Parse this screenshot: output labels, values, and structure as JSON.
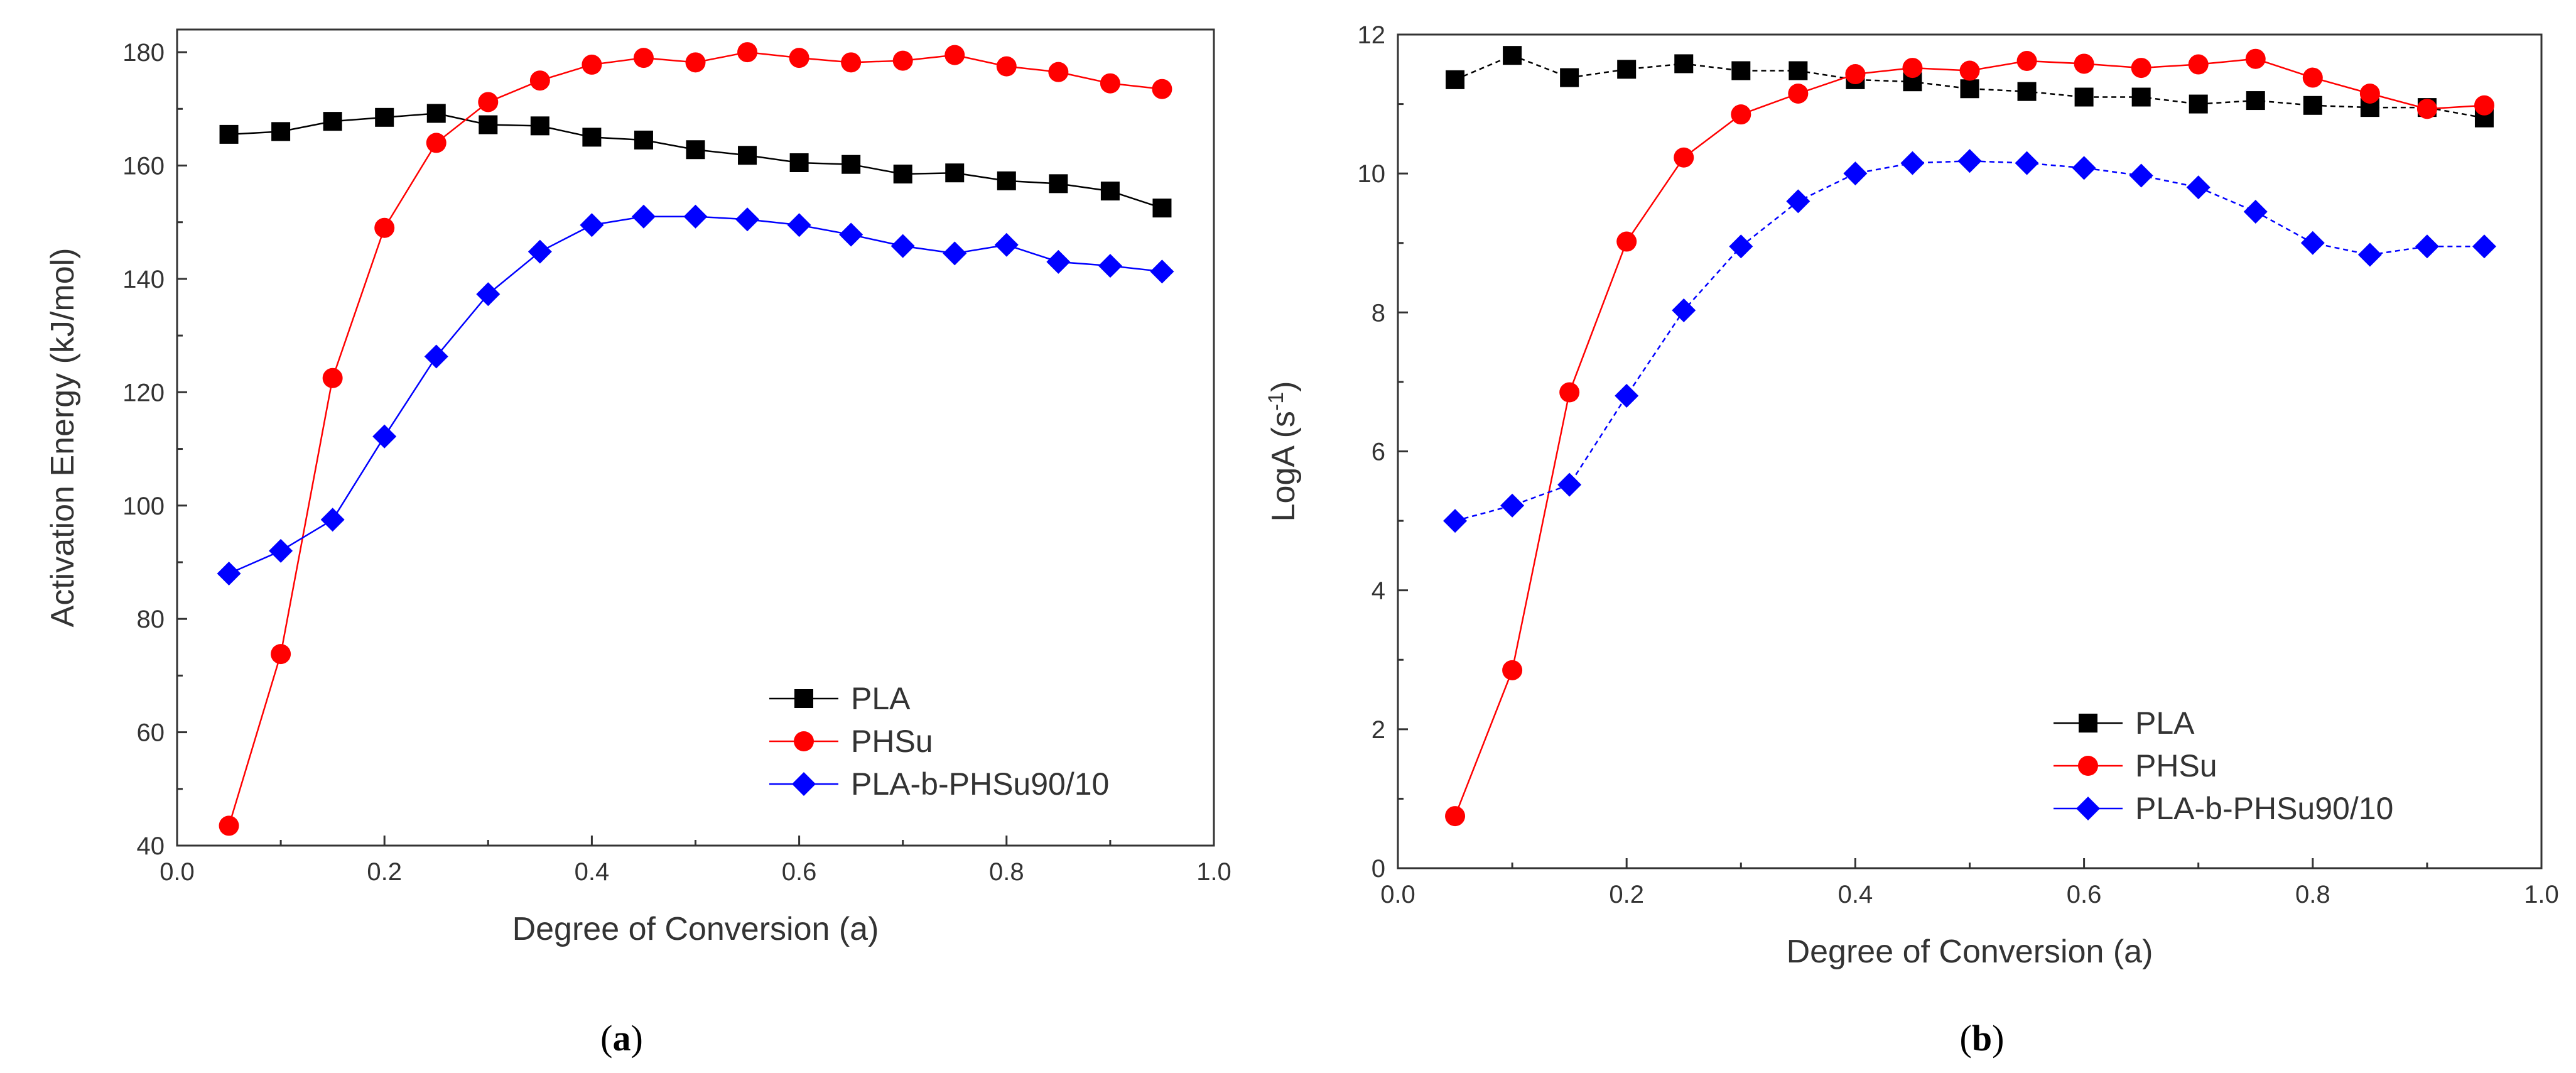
{
  "chart_data": [
    {
      "type": "line",
      "panel": "a",
      "caption": {
        "open": "(",
        "letter": "a",
        "close": ")"
      },
      "xlabel": "Degree of Conversion (a)",
      "ylabel": "Activation Energy (kJ/mol)",
      "xlim": [
        0.0,
        1.0
      ],
      "ylim": [
        40,
        184
      ],
      "x_ticks": [
        0.0,
        0.2,
        0.4,
        0.6,
        0.8,
        1.0
      ],
      "x_tick_labels": [
        "0.0",
        "0.2",
        "0.4",
        "0.6",
        "0.8",
        "1.0"
      ],
      "y_ticks": [
        40,
        60,
        80,
        100,
        120,
        140,
        160,
        180
      ],
      "y_tick_labels": [
        "40",
        "60",
        "80",
        "100",
        "120",
        "140",
        "160",
        "180"
      ],
      "x": [
        0.05,
        0.1,
        0.15,
        0.2,
        0.25,
        0.3,
        0.35,
        0.4,
        0.45,
        0.5,
        0.55,
        0.6,
        0.65,
        0.7,
        0.75,
        0.8,
        0.85,
        0.9,
        0.95
      ],
      "grid": false,
      "legend_position": "bottom-right",
      "series": [
        {
          "name": "PLA",
          "color": "#000000",
          "marker": "square",
          "line": true,
          "values": [
            165.5,
            166.0,
            167.8,
            168.5,
            169.2,
            167.2,
            167.0,
            165.0,
            164.5,
            162.8,
            161.8,
            160.5,
            160.2,
            158.5,
            158.7,
            157.3,
            156.8,
            155.5,
            152.5
          ]
        },
        {
          "name": "PHSu",
          "color": "#ff0000",
          "marker": "circle",
          "line": true,
          "values": [
            43.5,
            73.8,
            122.5,
            149.0,
            164.0,
            171.2,
            175.0,
            177.8,
            179.0,
            178.2,
            180.0,
            179.0,
            178.2,
            178.5,
            179.5,
            177.5,
            176.5,
            174.5,
            173.5
          ]
        },
        {
          "name": "PLA-b-PHSu90/10",
          "color": "#0000ff",
          "marker": "diamond",
          "line": true,
          "values": [
            88.0,
            92.0,
            97.5,
            112.2,
            126.3,
            137.3,
            144.8,
            149.5,
            151.0,
            151.0,
            150.5,
            149.5,
            147.8,
            145.8,
            144.5,
            146.0,
            143.0,
            142.3,
            141.3
          ]
        }
      ]
    },
    {
      "type": "line",
      "panel": "b",
      "caption": {
        "open": "(",
        "letter": "b",
        "close": ")"
      },
      "xlabel": "Degree of Conversion (a)",
      "ylabel": "LogA (s",
      "ylabel_superscript": "-1",
      "ylabel_suffix": ")",
      "xlim": [
        0.0,
        1.0
      ],
      "ylim": [
        0,
        12
      ],
      "x_ticks": [
        0.0,
        0.2,
        0.4,
        0.6,
        0.8,
        1.0
      ],
      "x_tick_labels": [
        "0.0",
        "0.2",
        "0.4",
        "0.6",
        "0.8",
        "1.0"
      ],
      "y_ticks": [
        0,
        2,
        4,
        6,
        8,
        10,
        12
      ],
      "y_tick_labels": [
        "0",
        "2",
        "4",
        "6",
        "8",
        "10",
        "12"
      ],
      "x": [
        0.05,
        0.1,
        0.15,
        0.2,
        0.25,
        0.3,
        0.35,
        0.4,
        0.45,
        0.5,
        0.55,
        0.6,
        0.65,
        0.7,
        0.75,
        0.8,
        0.85,
        0.9,
        0.95
      ],
      "grid": false,
      "legend_position": "bottom-right",
      "series": [
        {
          "name": "PLA",
          "color": "#000000",
          "marker": "square",
          "line": "dashed",
          "values": [
            11.35,
            11.7,
            11.38,
            11.5,
            11.58,
            11.48,
            11.48,
            11.35,
            11.32,
            11.22,
            11.18,
            11.1,
            11.1,
            11.0,
            11.05,
            10.98,
            10.95,
            10.95,
            10.8
          ]
        },
        {
          "name": "PHSu",
          "color": "#ff0000",
          "marker": "circle",
          "line": true,
          "values": [
            0.75,
            2.85,
            6.85,
            9.02,
            10.23,
            10.85,
            11.15,
            11.43,
            11.52,
            11.48,
            11.62,
            11.58,
            11.52,
            11.57,
            11.65,
            11.38,
            11.15,
            10.93,
            10.98
          ]
        },
        {
          "name": "PLA-b-PHSu90/10",
          "color": "#0000ff",
          "marker": "diamond",
          "line": "dashed",
          "values": [
            5.0,
            5.22,
            5.52,
            6.8,
            8.03,
            8.95,
            9.6,
            10.0,
            10.15,
            10.18,
            10.15,
            10.08,
            9.97,
            9.8,
            9.45,
            9.0,
            8.83,
            8.95,
            8.95
          ]
        }
      ]
    }
  ]
}
